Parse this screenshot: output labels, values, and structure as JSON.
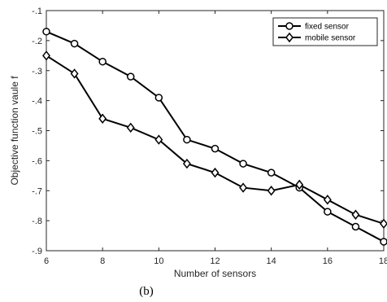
{
  "chart_data": {
    "type": "line",
    "xlabel": "Number of sensors",
    "ylabel": "Objective function vaule f",
    "xlim": [
      6,
      18
    ],
    "ylim": [
      -0.9,
      -0.1
    ],
    "xticks": [
      6,
      8,
      10,
      12,
      14,
      16,
      18
    ],
    "yticks": [
      -0.1,
      -0.2,
      -0.3,
      -0.4,
      -0.5,
      -0.6,
      -0.7,
      -0.8,
      -0.9
    ],
    "legend_position": "top-right",
    "grid": false,
    "x": [
      6,
      7,
      8,
      9,
      10,
      11,
      12,
      13,
      14,
      15,
      16,
      17,
      18
    ],
    "series": [
      {
        "name": "fixed sensor",
        "marker": "circle",
        "color": "#000000",
        "values": [
          -0.17,
          -0.21,
          -0.27,
          -0.32,
          -0.39,
          -0.53,
          -0.56,
          -0.61,
          -0.64,
          -0.69,
          -0.77,
          -0.82,
          -0.87
        ]
      },
      {
        "name": "mobile sensor",
        "marker": "diamond",
        "color": "#000000",
        "values": [
          -0.25,
          -0.31,
          -0.46,
          -0.49,
          -0.53,
          -0.61,
          -0.64,
          -0.69,
          -0.7,
          -0.68,
          -0.73,
          -0.78,
          -0.81
        ]
      }
    ]
  },
  "caption": "(b)"
}
